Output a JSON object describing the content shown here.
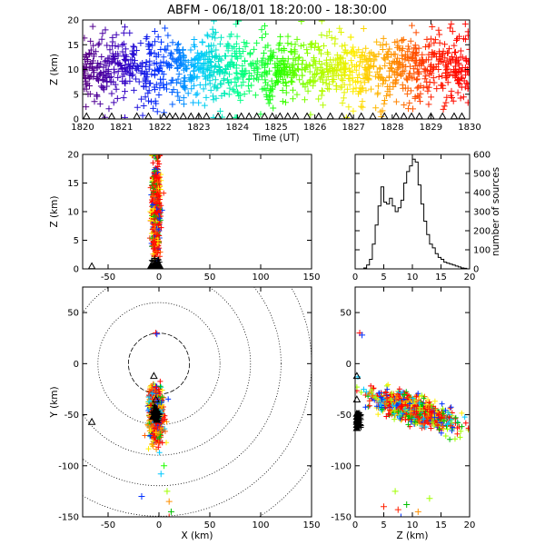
{
  "title": "ABFM - 06/18/01 18:20:00 - 18:30:00",
  "chart_data": [
    {
      "id": "time-height",
      "type": "scatter",
      "xlabel": "Time (UT)",
      "ylabel": "Z (km)",
      "xlim": [
        1820,
        1830
      ],
      "ylim": [
        0,
        20
      ],
      "xticks": [
        "1820",
        "1821",
        "1822",
        "1823",
        "1824",
        "1825",
        "1826",
        "1827",
        "1828",
        "1829",
        "1830"
      ],
      "yticks": [
        "0",
        "5",
        "10",
        "15",
        "20"
      ],
      "color_by": "time",
      "colormap": [
        "#5a0080",
        "#3a00c0",
        "#0030ff",
        "#00c8ff",
        "#00ff90",
        "#20ff00",
        "#a0ff00",
        "#ffee00",
        "#ff9000",
        "#ff2000",
        "#ff0000"
      ],
      "station_triangles_minute": [
        1820.1,
        1820.5,
        1820.75,
        1821.4,
        1821.7,
        1822.1,
        1822.25,
        1822.4,
        1822.6,
        1822.8,
        1823.0,
        1823.2,
        1823.5,
        1823.8,
        1824.1,
        1824.3,
        1824.5,
        1824.7,
        1824.9,
        1825.1,
        1825.3,
        1825.5,
        1825.8,
        1826.1,
        1826.4,
        1826.7,
        1826.9,
        1827.2,
        1827.5,
        1827.8,
        1828.1,
        1828.3,
        1828.5,
        1828.7,
        1829.0,
        1829.3,
        1829.6,
        1829.8
      ]
    },
    {
      "id": "x-height",
      "type": "scatter",
      "xlabel": "",
      "ylabel": "Z (km)",
      "xlim": [
        -75,
        150
      ],
      "ylim": [
        0,
        20
      ],
      "xticks": [
        "-50",
        "0",
        "50",
        "100",
        "150"
      ],
      "yticks": [
        "0",
        "5",
        "10",
        "15",
        "20"
      ],
      "cluster_x_km": [
        -8,
        2
      ],
      "station_triangles_x_km": [
        -66,
        -8,
        -6,
        -4,
        -2,
        -1,
        0,
        1
      ]
    },
    {
      "id": "height-histogram",
      "type": "bar",
      "xlabel": "",
      "ylabel": "number of sources",
      "xlim": [
        0,
        20
      ],
      "ylim": [
        0,
        600
      ],
      "xticks": [
        "0",
        "5",
        "10",
        "15",
        "20"
      ],
      "yticks": [
        "0",
        "100",
        "200",
        "300",
        "400",
        "500",
        "600"
      ],
      "bin_width_km": 0.5,
      "bin_start_km": [
        1.5,
        2.0,
        2.5,
        3.0,
        3.5,
        4.0,
        4.5,
        5.0,
        5.5,
        6.0,
        6.5,
        7.0,
        7.5,
        8.0,
        8.5,
        9.0,
        9.5,
        10.0,
        10.5,
        11.0,
        11.5,
        12.0,
        12.5,
        13.0,
        13.5,
        14.0,
        14.5,
        15.0,
        15.5,
        16.0,
        16.5,
        17.0,
        17.5,
        18.0,
        18.5,
        19.0
      ],
      "values": [
        5,
        20,
        50,
        130,
        230,
        330,
        430,
        350,
        340,
        370,
        330,
        300,
        320,
        360,
        450,
        510,
        540,
        575,
        560,
        440,
        340,
        250,
        180,
        130,
        110,
        80,
        60,
        50,
        35,
        30,
        25,
        20,
        15,
        10,
        5,
        3
      ]
    },
    {
      "id": "plan-view",
      "type": "scatter",
      "xlabel": "X (km)",
      "ylabel": "Y (km)",
      "xlim": [
        -75,
        150
      ],
      "ylim": [
        -150,
        75
      ],
      "xticks": [
        "-50",
        "0",
        "50",
        "100",
        "150"
      ],
      "yticks": [
        "-150",
        "-100",
        "-50",
        "0",
        "50"
      ],
      "range_rings_km": [
        30,
        60,
        90,
        120,
        150,
        180
      ],
      "cluster_center_km": [
        -3,
        -50
      ],
      "station_triangles_km": [
        [
          -66,
          -57
        ],
        [
          -5,
          -12
        ],
        [
          -3,
          -35
        ],
        [
          -4,
          -49
        ],
        [
          -6,
          -52
        ],
        [
          -2,
          -55
        ]
      ]
    },
    {
      "id": "height-y",
      "type": "scatter",
      "xlabel": "Z (km)",
      "ylabel": "",
      "xlim": [
        0,
        20
      ],
      "ylim": [
        -150,
        75
      ],
      "xticks": [
        "0",
        "5",
        "10",
        "15",
        "20"
      ],
      "yticks": [
        "-150",
        "-100",
        "-50",
        "0",
        "50"
      ],
      "station_triangles_y_km": [
        -12,
        -35,
        -49,
        -52,
        -55,
        -57,
        -60,
        -63
      ]
    }
  ]
}
